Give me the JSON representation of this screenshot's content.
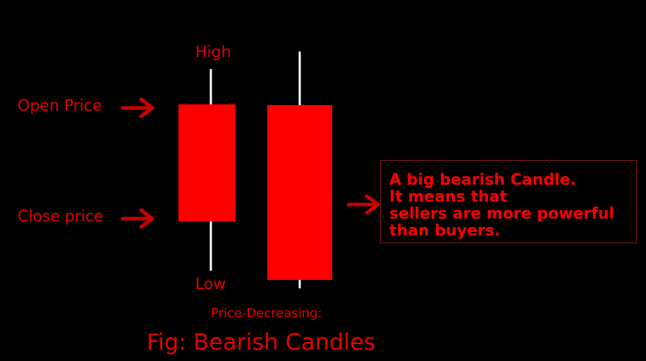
{
  "labels": {
    "high": "High",
    "low": "Low",
    "open_price": "Open Price",
    "close_price": "Close price"
  },
  "note": {
    "lines": [
      "A big bearish Candle.",
      "It means that",
      "sellers are more powerful",
      "than buyers."
    ]
  },
  "subtitle": "Price-Decreasing:",
  "figure_caption": "Fig: Bearish Candles",
  "colors": {
    "background": "#000000",
    "candle_body": "#ff0000",
    "wick": "#ffffff",
    "arrow": "#cc0000",
    "label_text": "#e50000",
    "note_text": "#ff0000",
    "note_border": "#8a1a1a"
  }
}
